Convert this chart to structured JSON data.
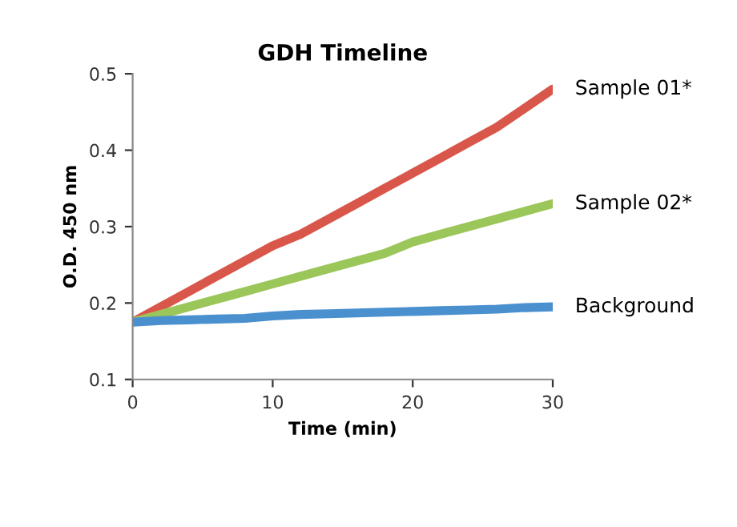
{
  "chart_data": {
    "type": "line",
    "title": "GDH Timeline",
    "xlabel": "Time (min)",
    "ylabel": "O.D. 450 nm",
    "x": [
      0,
      2,
      4,
      6,
      8,
      10,
      12,
      14,
      16,
      18,
      20,
      22,
      24,
      26,
      28,
      30
    ],
    "series": [
      {
        "name": "Sample 01*",
        "color": "#d9574a",
        "values": [
          0.175,
          0.195,
          0.215,
          0.235,
          0.255,
          0.275,
          0.29,
          0.31,
          0.33,
          0.35,
          0.37,
          0.39,
          0.41,
          0.43,
          0.455,
          0.48
        ]
      },
      {
        "name": "Sample 02*",
        "color": "#9bc65a",
        "values": [
          0.175,
          0.185,
          0.195,
          0.205,
          0.215,
          0.225,
          0.235,
          0.245,
          0.255,
          0.265,
          0.28,
          0.29,
          0.3,
          0.31,
          0.32,
          0.33
        ]
      },
      {
        "name": "Background",
        "color": "#4a90cf",
        "values": [
          0.175,
          0.177,
          0.178,
          0.179,
          0.18,
          0.183,
          0.185,
          0.186,
          0.187,
          0.188,
          0.189,
          0.19,
          0.191,
          0.192,
          0.194,
          0.195
        ]
      }
    ],
    "xlim": [
      0,
      30
    ],
    "xticks": [
      0,
      10,
      20,
      30
    ],
    "ylim": [
      0.1,
      0.5
    ],
    "yticks": [
      0.1,
      0.2,
      0.3,
      0.4,
      0.5
    ],
    "grid": false,
    "legend": false,
    "marker": "none",
    "line_style": "solid"
  }
}
